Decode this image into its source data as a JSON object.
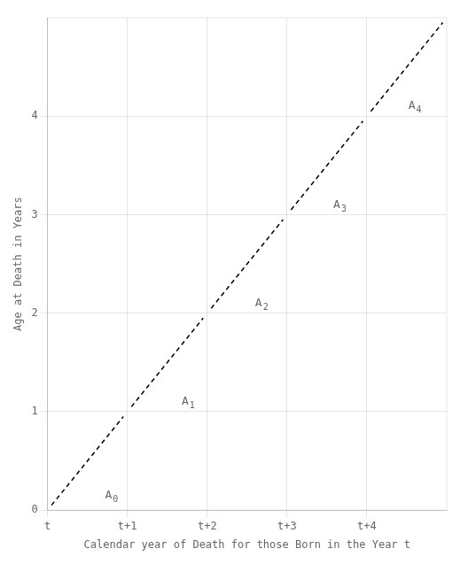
{
  "chart_data": {
    "type": "line",
    "xlabel": "Calendar year of Death for those Born in the Year t",
    "ylabel": "Age at Death in Years",
    "xlim": [
      0,
      5
    ],
    "ylim": [
      0,
      5
    ],
    "xticks": [
      {
        "value": 0,
        "label": "t"
      },
      {
        "value": 1,
        "label": "t+1"
      },
      {
        "value": 2,
        "label": "t+2"
      },
      {
        "value": 3,
        "label": "t+3"
      },
      {
        "value": 4,
        "label": "t+4"
      }
    ],
    "yticks": [
      0,
      1,
      2,
      3,
      4
    ],
    "grid": true,
    "series": [
      {
        "x": [
          0.05,
          0.95
        ],
        "values": [
          0.05,
          0.95
        ],
        "color": "#000000",
        "line_style": "dashed"
      },
      {
        "x": [
          1.05,
          1.95
        ],
        "values": [
          1.05,
          1.95
        ],
        "color": "#000000",
        "line_style": "dashed"
      },
      {
        "x": [
          2.05,
          2.95
        ],
        "values": [
          2.05,
          2.95
        ],
        "color": "#000000",
        "line_style": "dashed"
      },
      {
        "x": [
          3.05,
          3.95
        ],
        "values": [
          3.05,
          3.95
        ],
        "color": "#000000",
        "line_style": "dashed"
      },
      {
        "x": [
          4.05,
          4.95
        ],
        "values": [
          4.05,
          4.95
        ],
        "color": "#000000",
        "line_style": "dashed"
      }
    ],
    "annotations": [
      {
        "text": "A",
        "subscript": "0",
        "x": 0.72,
        "y": 0.12
      },
      {
        "text": "A",
        "subscript": "1",
        "x": 1.68,
        "y": 1.07
      },
      {
        "text": "A",
        "subscript": "2",
        "x": 2.6,
        "y": 2.07
      },
      {
        "text": "A",
        "subscript": "3",
        "x": 3.58,
        "y": 3.07
      },
      {
        "text": "A",
        "subscript": "4",
        "x": 4.52,
        "y": 4.07
      }
    ]
  }
}
